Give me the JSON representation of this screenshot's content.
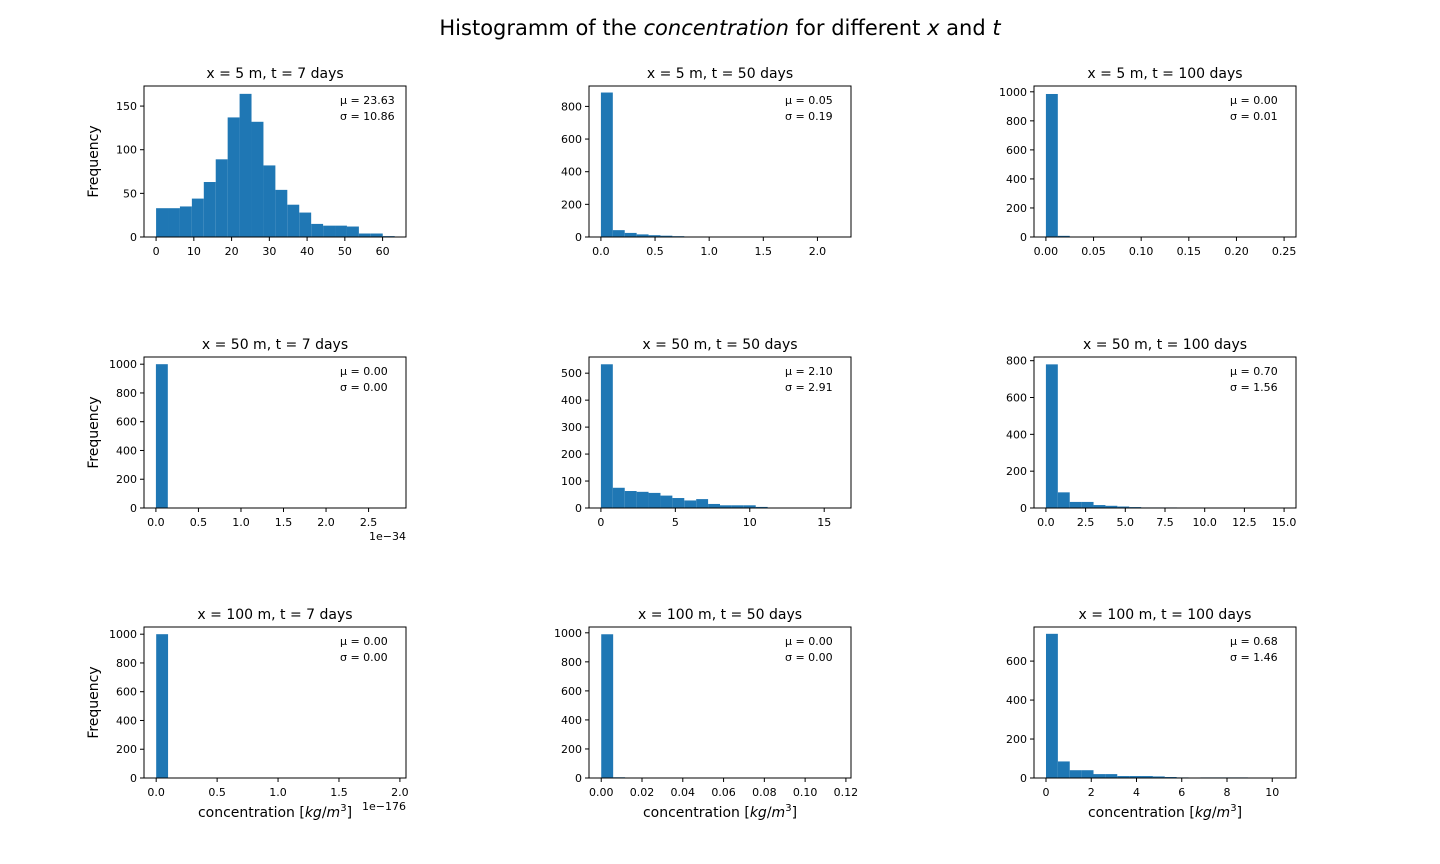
{
  "figure": {
    "title_prefix": "Histogramm of the ",
    "title_concentration": "concentration",
    "title_middle": " for different ",
    "title_x": "x",
    "title_and": " and ",
    "title_t": "t"
  },
  "colors": {
    "bar": "#1f77b4",
    "axes": "#000000",
    "background": "#ffffff"
  },
  "chart_data": [
    {
      "type": "bar",
      "title": "x = 5 m, t = 7 days",
      "ylabel": "Frequency",
      "xlabel": "",
      "xlim": [
        -3.2,
        66.2
      ],
      "ylim": [
        0,
        173
      ],
      "xticks": [
        0,
        10,
        20,
        30,
        40,
        50,
        60
      ],
      "xtick_labels": [
        "0",
        "10",
        "20",
        "30",
        "40",
        "50",
        "60"
      ],
      "yticks": [
        0,
        50,
        100,
        150
      ],
      "ytick_labels": [
        "0",
        "50",
        "100",
        "150"
      ],
      "x_offset": "",
      "bin_start": 0,
      "bin_width": 3.16,
      "values": [
        33,
        33,
        35,
        44,
        63,
        89,
        137,
        164,
        132,
        82,
        54,
        37,
        28,
        15,
        13,
        13,
        12,
        4,
        4,
        1
      ],
      "mu_text": "μ = 23.63",
      "sigma_text": "σ = 10.86"
    },
    {
      "type": "bar",
      "title": "x = 5 m, t = 50 days",
      "ylabel": "",
      "xlabel": "",
      "xlim": [
        -0.11,
        2.31
      ],
      "ylim": [
        0,
        925
      ],
      "xticks": [
        0,
        0.5,
        1.0,
        1.5,
        2.0
      ],
      "xtick_labels": [
        "0.0",
        "0.5",
        "1.0",
        "1.5",
        "2.0"
      ],
      "yticks": [
        0,
        200,
        400,
        600,
        800
      ],
      "ytick_labels": [
        "0",
        "200",
        "400",
        "600",
        "800"
      ],
      "x_offset": "",
      "bin_start": 0,
      "bin_width": 0.11,
      "values": [
        885,
        42,
        25,
        16,
        11,
        8,
        5,
        3,
        0,
        2,
        0,
        1,
        0,
        2,
        0,
        0,
        1,
        0,
        1,
        1
      ],
      "mu_text": "μ = 0.05",
      "sigma_text": "σ = 0.19"
    },
    {
      "type": "bar",
      "title": "x = 5 m, t = 100 days",
      "ylabel": "",
      "xlabel": "",
      "xlim": [
        -0.0125,
        0.2625
      ],
      "ylim": [
        0,
        1040
      ],
      "xticks": [
        0,
        0.05,
        0.1,
        0.15,
        0.2,
        0.25
      ],
      "xtick_labels": [
        "0.00",
        "0.05",
        "0.10",
        "0.15",
        "0.20",
        "0.25"
      ],
      "yticks": [
        0,
        200,
        400,
        600,
        800,
        1000
      ],
      "ytick_labels": [
        "0",
        "200",
        "400",
        "600",
        "800",
        "1000"
      ],
      "x_offset": "",
      "bin_start": 0,
      "bin_width": 0.0125,
      "values": [
        985,
        8,
        3,
        2,
        1,
        0,
        0,
        0,
        0,
        0,
        0,
        0,
        0,
        0,
        0,
        0,
        0,
        0,
        0,
        1
      ],
      "mu_text": "μ = 0.00",
      "sigma_text": "σ = 0.01"
    },
    {
      "type": "bar",
      "title": "x = 50 m, t = 7 days",
      "ylabel": "Frequency",
      "xlabel": "",
      "xlim": [
        -0.14,
        2.94
      ],
      "ylim": [
        0,
        1050
      ],
      "xticks": [
        0,
        0.5,
        1.0,
        1.5,
        2.0,
        2.5
      ],
      "xtick_labels": [
        "0.0",
        "0.5",
        "1.0",
        "1.5",
        "2.0",
        "2.5"
      ],
      "yticks": [
        0,
        200,
        400,
        600,
        800,
        1000
      ],
      "ytick_labels": [
        "0",
        "200",
        "400",
        "600",
        "800",
        "1000"
      ],
      "x_offset": "1e−34",
      "bin_start": 0,
      "bin_width": 0.14,
      "values": [
        1000,
        0,
        0,
        0,
        0,
        0,
        0,
        0,
        0,
        0,
        0,
        0,
        0,
        0,
        0,
        0,
        0,
        0,
        0,
        0
      ],
      "mu_text": "μ = 0.00",
      "sigma_text": "σ = 0.00"
    },
    {
      "type": "bar",
      "title": "x = 50 m, t = 50 days",
      "ylabel": "",
      "xlabel": "",
      "xlim": [
        -0.8,
        16.8
      ],
      "ylim": [
        0,
        560
      ],
      "xticks": [
        0,
        5,
        10,
        15
      ],
      "xtick_labels": [
        "0",
        "5",
        "10",
        "15"
      ],
      "yticks": [
        0,
        100,
        200,
        300,
        400,
        500
      ],
      "ytick_labels": [
        "0",
        "100",
        "200",
        "300",
        "400",
        "500"
      ],
      "x_offset": "",
      "bin_start": 0,
      "bin_width": 0.8,
      "values": [
        533,
        75,
        63,
        60,
        56,
        46,
        37,
        28,
        33,
        15,
        10,
        10,
        10,
        4,
        0,
        0,
        1,
        0,
        1,
        0
      ],
      "mu_text": "μ = 2.10",
      "sigma_text": "σ = 2.91"
    },
    {
      "type": "bar",
      "title": "x = 50 m, t = 100 days",
      "ylabel": "",
      "xlabel": "",
      "xlim": [
        -0.75,
        15.75
      ],
      "ylim": [
        0,
        820
      ],
      "xticks": [
        0,
        2.5,
        5.0,
        7.5,
        10.0,
        12.5,
        15.0
      ],
      "xtick_labels": [
        "0.0",
        "2.5",
        "5.0",
        "7.5",
        "10.0",
        "12.5",
        "15.0"
      ],
      "yticks": [
        0,
        200,
        400,
        600,
        800
      ],
      "ytick_labels": [
        "0",
        "200",
        "400",
        "600",
        "800"
      ],
      "x_offset": "",
      "bin_start": 0,
      "bin_width": 0.75,
      "values": [
        780,
        85,
        33,
        33,
        16,
        12,
        8,
        5,
        3,
        3,
        3,
        1,
        0,
        0,
        0,
        0,
        0,
        0,
        0,
        1
      ],
      "mu_text": "μ = 0.70",
      "sigma_text": "σ = 1.56"
    },
    {
      "type": "bar",
      "title": "x = 100 m, t = 7 days",
      "ylabel": "Frequency",
      "xlabel": "concentration [kg/m3]",
      "xlabel_parts": {
        "prefix": "concentration [",
        "unit": "kg",
        "sep": "/",
        "unit2": "m",
        "exp": "3",
        "suffix": "]"
      },
      "xlim": [
        -0.1,
        2.05
      ],
      "ylim": [
        0,
        1050
      ],
      "xticks": [
        0,
        0.5,
        1.0,
        1.5,
        2.0
      ],
      "xtick_labels": [
        "0.0",
        "0.5",
        "1.0",
        "1.5",
        "2.0"
      ],
      "yticks": [
        0,
        200,
        400,
        600,
        800,
        1000
      ],
      "ytick_labels": [
        "0",
        "200",
        "400",
        "600",
        "800",
        "1000"
      ],
      "x_offset": "1e−176",
      "bin_start": 0,
      "bin_width": 0.0975,
      "values": [
        1000,
        0,
        0,
        0,
        0,
        0,
        0,
        0,
        0,
        0,
        0,
        0,
        0,
        0,
        0,
        0,
        0,
        0,
        0,
        1
      ],
      "mu_text": "μ = 0.00",
      "sigma_text": "σ = 0.00"
    },
    {
      "type": "bar",
      "title": "x = 100 m, t = 50 days",
      "ylabel": "",
      "xlabel": "concentration [kg/m3]",
      "xlabel_parts": {
        "prefix": "concentration [",
        "unit": "kg",
        "sep": "/",
        "unit2": "m",
        "exp": "3",
        "suffix": "]"
      },
      "xlim": [
        -0.006,
        0.1225
      ],
      "ylim": [
        0,
        1040
      ],
      "xticks": [
        0,
        0.02,
        0.04,
        0.06,
        0.08,
        0.1,
        0.12
      ],
      "xtick_labels": [
        "0.00",
        "0.02",
        "0.04",
        "0.06",
        "0.08",
        "0.10",
        "0.12"
      ],
      "yticks": [
        0,
        200,
        400,
        600,
        800,
        1000
      ],
      "ytick_labels": [
        "0",
        "200",
        "400",
        "600",
        "800",
        "1000"
      ],
      "x_offset": "",
      "bin_start": 0,
      "bin_width": 0.00585,
      "values": [
        990,
        5,
        2,
        0,
        1,
        1,
        1,
        0,
        0,
        0,
        0,
        0,
        0,
        0,
        0,
        0,
        0,
        0,
        0,
        1
      ],
      "mu_text": "μ = 0.00",
      "sigma_text": "σ = 0.00"
    },
    {
      "type": "bar",
      "title": "x = 100 m, t = 100 days",
      "ylabel": "",
      "xlabel": "concentration [kg/m3]",
      "xlabel_parts": {
        "prefix": "concentration [",
        "unit": "kg",
        "sep": "/",
        "unit2": "m",
        "exp": "3",
        "suffix": "]"
      },
      "xlim": [
        -0.53,
        11.05
      ],
      "ylim": [
        0,
        775
      ],
      "xticks": [
        0,
        2,
        4,
        6,
        8,
        10
      ],
      "xtick_labels": [
        "0",
        "2",
        "4",
        "6",
        "8",
        "10"
      ],
      "yticks": [
        0,
        200,
        400,
        600
      ],
      "ytick_labels": [
        "0",
        "200",
        "400",
        "600"
      ],
      "x_offset": "",
      "bin_start": 0,
      "bin_width": 0.525,
      "values": [
        740,
        85,
        40,
        40,
        20,
        20,
        10,
        10,
        10,
        8,
        5,
        3,
        0,
        3,
        3,
        3,
        3,
        2,
        2,
        1
      ],
      "mu_text": "μ = 0.68",
      "sigma_text": "σ = 1.46"
    }
  ]
}
